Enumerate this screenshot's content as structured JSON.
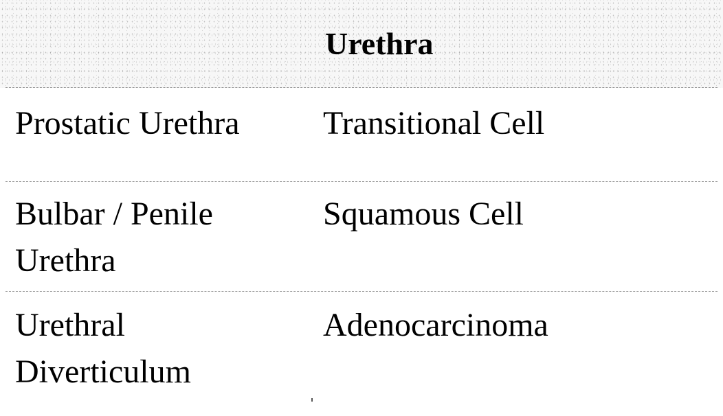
{
  "table": {
    "header": "Urethra",
    "rows": [
      {
        "location": [
          "Prostatic Urethra"
        ],
        "type": "Transitional Cell"
      },
      {
        "location": [
          "Bulbar / Penile",
          "Urethra"
        ],
        "type": "Squamous Cell"
      },
      {
        "location": [
          "Urethral",
          "Diverticulum"
        ],
        "type": "Adenocarcinoma"
      }
    ]
  }
}
